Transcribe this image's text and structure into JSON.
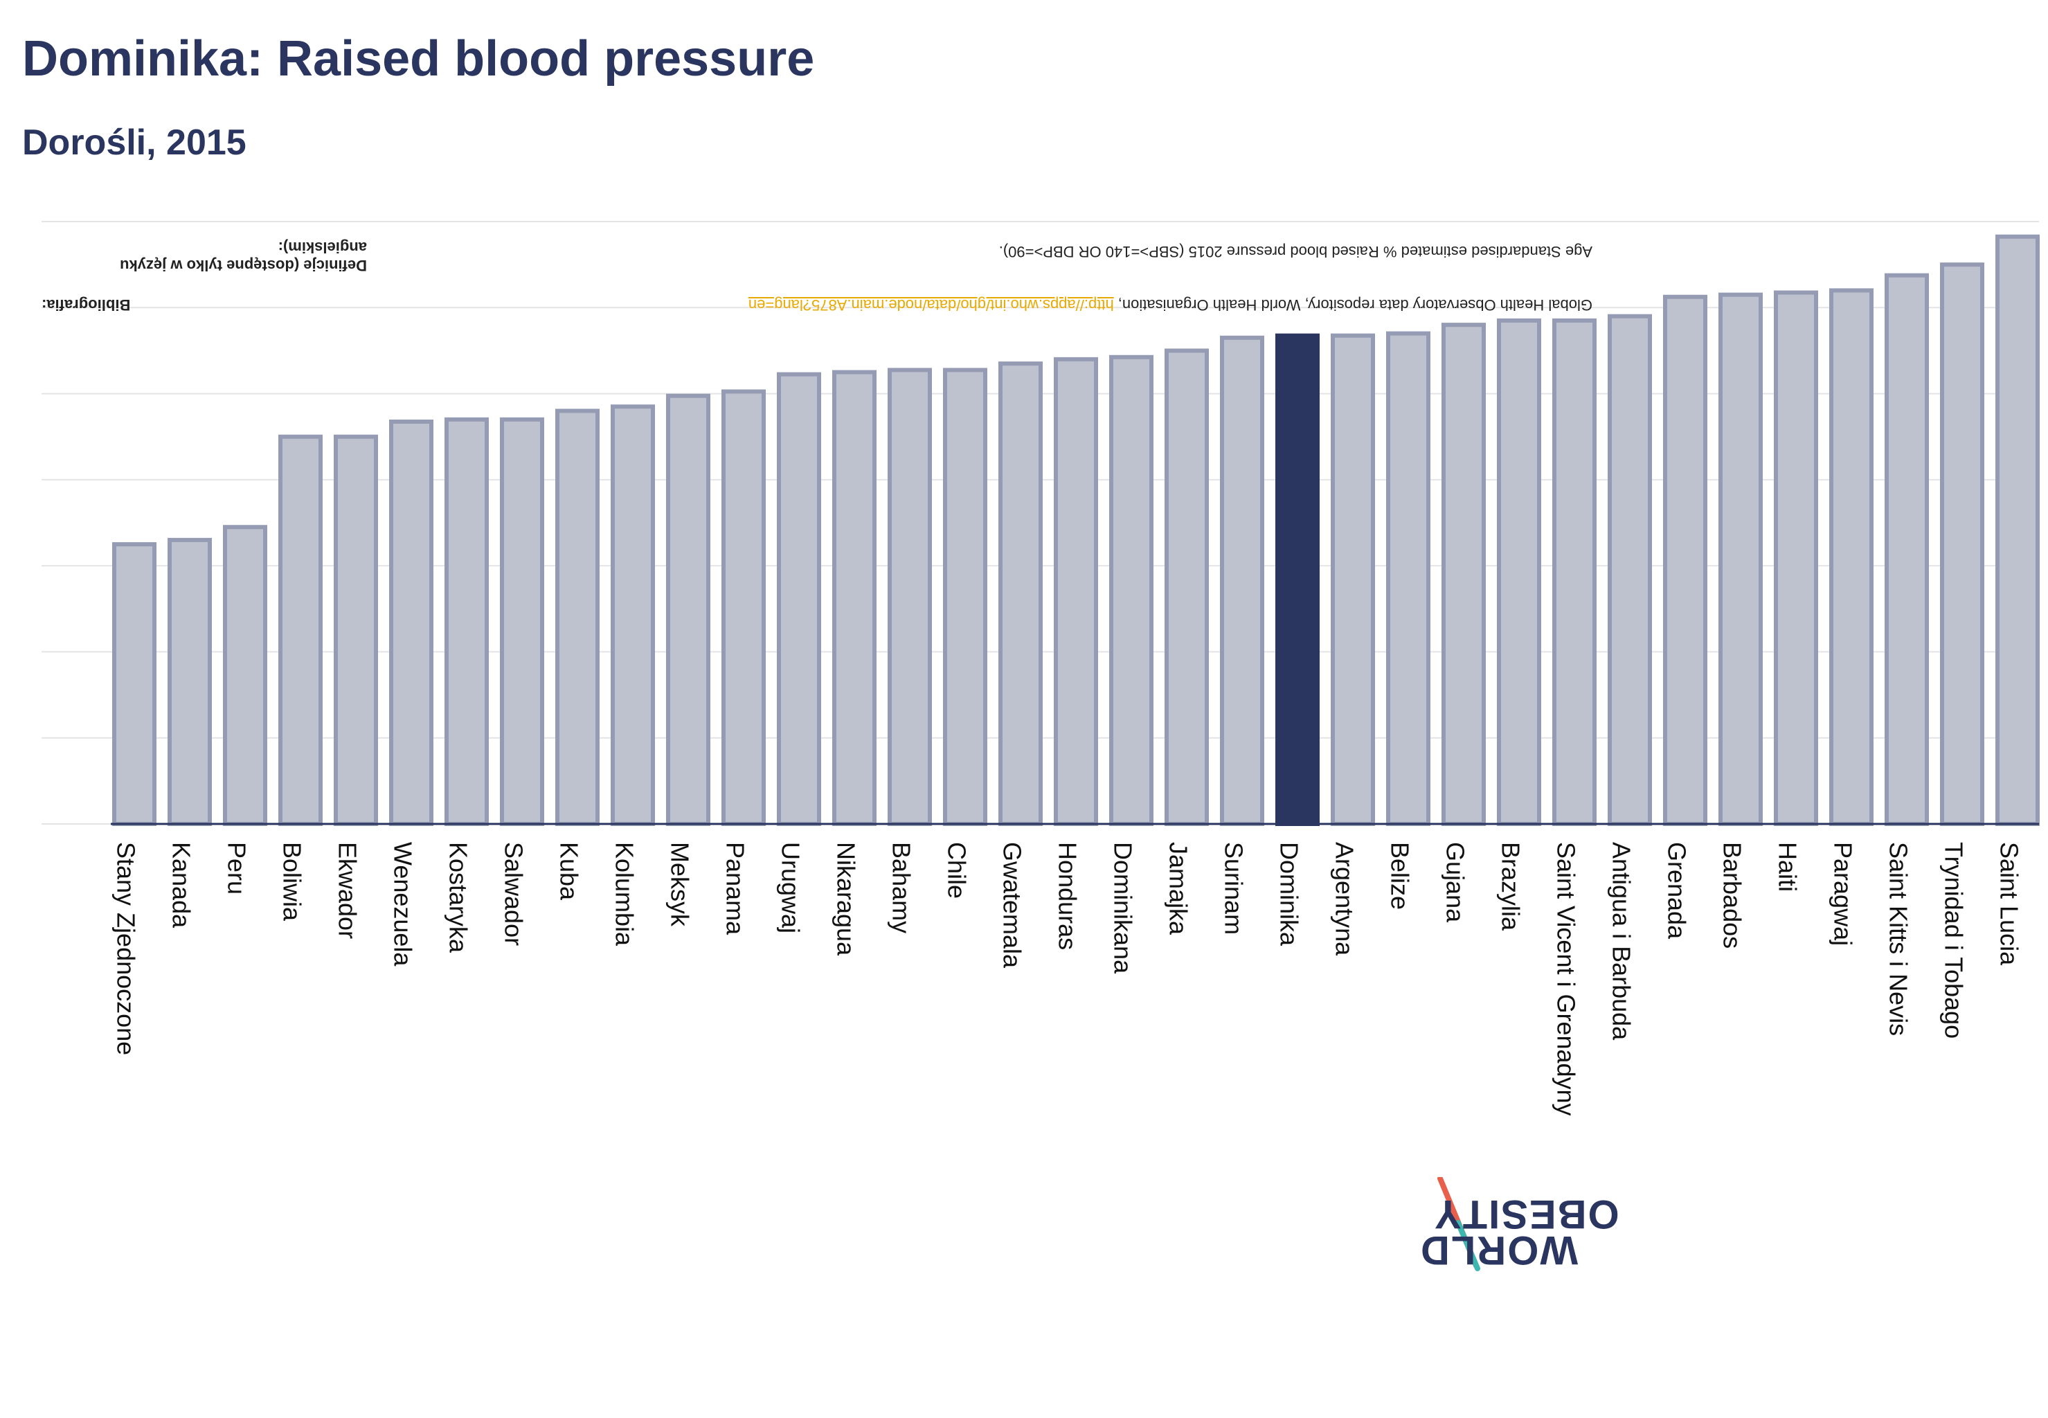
{
  "title": "Dominika: Raised blood pressure",
  "subtitle": "Dorośli, 2015",
  "sources": {
    "definitions_label": "Definicje (dostępne tylko w języku angielskim):",
    "definitions_text": "Age Standardised estimated % Raised blood pressure 2015 (SBP>=140 OR DBP>=90).",
    "bibliography_label": "Bibliografia:",
    "bibliography_text": "Global Health Observatory data repository, World Health Organisation, ",
    "bibliography_link": "http://apps.who.int/gho/data/node.main.A875?lang=en"
  },
  "logo": {
    "line1": "OBESITY",
    "line2": "WORLD"
  },
  "colors": {
    "bar_fill": "#bec2cf",
    "bar_stroke": "#959bb3",
    "highlight": "#2a3560",
    "grid": "#e4e4e4",
    "axis": "#2a3560"
  },
  "chart_data": {
    "type": "bar",
    "categories": [
      "Stany Zjednoczone",
      "Kanada",
      "Peru",
      "Boliwia",
      "Ekwador",
      "Wenezuela",
      "Kostaryka",
      "Salwador",
      "Kuba",
      "Kolumbia",
      "Meksyk",
      "Panama",
      "Urugwaj",
      "Nikaragua",
      "Bahamy",
      "Chile",
      "Gwatemala",
      "Honduras",
      "Dominikana",
      "Jamajka",
      "Surinam",
      "Dominika",
      "Argentyna",
      "Belize",
      "Gujana",
      "Brazylia",
      "Saint Vicent i Grenadyny",
      "Antigua i Barbuda",
      "Grenada",
      "Barbados",
      "Haiti",
      "Paragwaj",
      "Saint Kitts i Nevis",
      "Trynidad i Tobago",
      "Saint Lucia"
    ],
    "values": [
      13.0,
      13.2,
      13.8,
      18.0,
      18.0,
      18.7,
      18.8,
      18.8,
      19.2,
      19.4,
      19.9,
      20.1,
      20.9,
      21.0,
      21.1,
      21.1,
      21.4,
      21.6,
      21.7,
      22.0,
      22.6,
      22.7,
      22.7,
      22.8,
      23.2,
      23.4,
      23.4,
      23.6,
      24.5,
      24.6,
      24.7,
      24.8,
      25.5,
      26.0,
      27.3
    ],
    "highlight": "Dominika",
    "ylim": [
      0,
      28
    ],
    "grid": true,
    "legend": "none"
  }
}
